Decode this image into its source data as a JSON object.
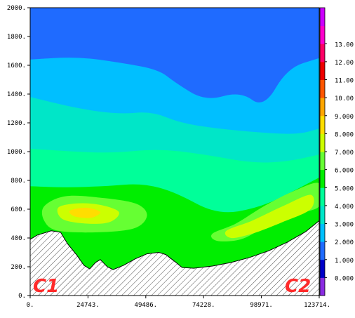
{
  "chart_data": {
    "type": "heatmap",
    "title": "",
    "xlabel": "",
    "ylabel": "",
    "x_ticks": [
      0,
      24743,
      49486,
      74228,
      98971,
      123714
    ],
    "x_tick_labels": [
      "0.",
      "24743.",
      "49486.",
      "74228.",
      "98971.",
      "123714."
    ],
    "xlim": [
      0,
      123714
    ],
    "y_ticks": [
      0,
      200,
      400,
      600,
      800,
      1000,
      1200,
      1400,
      1600,
      1800,
      2000
    ],
    "y_tick_labels": [
      "0.",
      "200.",
      "400.",
      "600.",
      "800.",
      "1000.",
      "1200.",
      "1400.",
      "1600.",
      "1800.",
      "2000."
    ],
    "ylim": [
      0,
      2000
    ],
    "colorbar": {
      "tick_labels": [
        "0.000",
        "1.000",
        "2.000",
        "3.000",
        "4.000",
        "5.000",
        "6.000",
        "7.000",
        "8.000",
        "9.000",
        "10.00",
        "11.00",
        "12.00",
        "13.00"
      ],
      "levels": [
        {
          "value": -1,
          "color": "#8a2be2"
        },
        {
          "value": 0,
          "color": "#0000c8"
        },
        {
          "value": 1,
          "color": "#1f6bff"
        },
        {
          "value": 2,
          "color": "#00bfff"
        },
        {
          "value": 3,
          "color": "#00e6c8"
        },
        {
          "value": 4,
          "color": "#00ff99"
        },
        {
          "value": 5,
          "color": "#00ee00"
        },
        {
          "value": 6,
          "color": "#66ff33"
        },
        {
          "value": 7,
          "color": "#ccff00"
        },
        {
          "value": 8,
          "color": "#ffdd00"
        },
        {
          "value": 9,
          "color": "#ffa500"
        },
        {
          "value": 10,
          "color": "#ff5500"
        },
        {
          "value": 11,
          "color": "#ee0000"
        },
        {
          "value": 12,
          "color": "#ff0066"
        },
        {
          "value": 13,
          "color": "#ff00cc"
        },
        {
          "value": 14,
          "color": "#cc00ff"
        }
      ]
    },
    "terrain_profile": [
      {
        "x": 0,
        "y": 390
      },
      {
        "x": 3000,
        "y": 420
      },
      {
        "x": 9000,
        "y": 450
      },
      {
        "x": 13000,
        "y": 440
      },
      {
        "x": 16000,
        "y": 360
      },
      {
        "x": 20000,
        "y": 280
      },
      {
        "x": 23000,
        "y": 210
      },
      {
        "x": 25500,
        "y": 185
      },
      {
        "x": 28000,
        "y": 230
      },
      {
        "x": 30000,
        "y": 250
      },
      {
        "x": 33000,
        "y": 200
      },
      {
        "x": 35500,
        "y": 180
      },
      {
        "x": 40000,
        "y": 210
      },
      {
        "x": 45000,
        "y": 255
      },
      {
        "x": 50000,
        "y": 290
      },
      {
        "x": 55000,
        "y": 300
      },
      {
        "x": 58000,
        "y": 285
      },
      {
        "x": 62000,
        "y": 235
      },
      {
        "x": 65000,
        "y": 195
      },
      {
        "x": 70000,
        "y": 190
      },
      {
        "x": 78000,
        "y": 205
      },
      {
        "x": 86000,
        "y": 230
      },
      {
        "x": 94000,
        "y": 265
      },
      {
        "x": 102000,
        "y": 310
      },
      {
        "x": 110000,
        "y": 370
      },
      {
        "x": 118000,
        "y": 445
      },
      {
        "x": 123714,
        "y": 520
      }
    ],
    "contours": [
      {
        "level": 1,
        "points": [
          [
            0,
            1640
          ],
          [
            20000,
            1660
          ],
          [
            38000,
            1620
          ],
          [
            55000,
            1570
          ],
          [
            62000,
            1480
          ],
          [
            75000,
            1350
          ],
          [
            90000,
            1420
          ],
          [
            100000,
            1300
          ],
          [
            110000,
            1580
          ],
          [
            123714,
            1650
          ]
        ]
      },
      {
        "level": 2,
        "points": [
          [
            0,
            1380
          ],
          [
            20000,
            1300
          ],
          [
            38000,
            1260
          ],
          [
            52000,
            1280
          ],
          [
            64000,
            1200
          ],
          [
            80000,
            1160
          ],
          [
            100000,
            1130
          ],
          [
            115000,
            1120
          ],
          [
            123714,
            1160
          ]
        ]
      },
      {
        "level": 3,
        "points": [
          [
            0,
            1020
          ],
          [
            18000,
            1000
          ],
          [
            35000,
            990
          ],
          [
            55000,
            1020
          ],
          [
            75000,
            980
          ],
          [
            95000,
            920
          ],
          [
            110000,
            930
          ],
          [
            123714,
            980
          ]
        ]
      },
      {
        "level": 4,
        "points": [
          [
            0,
            760
          ],
          [
            15000,
            750
          ],
          [
            33000,
            760
          ],
          [
            48000,
            780
          ],
          [
            62000,
            720
          ],
          [
            80000,
            560
          ],
          [
            98000,
            610
          ],
          [
            112000,
            720
          ],
          [
            123714,
            820
          ]
        ]
      },
      {
        "level": 5,
        "points": [
          [
            6000,
            620
          ],
          [
            15000,
            690
          ],
          [
            30000,
            680
          ],
          [
            45000,
            640
          ],
          [
            50000,
            560
          ],
          [
            45000,
            470
          ],
          [
            30000,
            440
          ],
          [
            12000,
            450
          ],
          [
            6000,
            520
          ]
        ]
      },
      {
        "level": 5,
        "points": [
          [
            78000,
            430
          ],
          [
            88000,
            500
          ],
          [
            100000,
            620
          ],
          [
            112000,
            720
          ],
          [
            123714,
            780
          ],
          [
            123714,
            620
          ],
          [
            112000,
            560
          ],
          [
            100000,
            470
          ],
          [
            90000,
            390
          ],
          [
            80000,
            380
          ]
        ]
      },
      {
        "level": 6,
        "points": [
          [
            12000,
            610
          ],
          [
            20000,
            640
          ],
          [
            30000,
            630
          ],
          [
            38000,
            580
          ],
          [
            34000,
            510
          ],
          [
            24000,
            500
          ],
          [
            14000,
            530
          ]
        ]
      },
      {
        "level": 6,
        "points": [
          [
            84000,
            450
          ],
          [
            95000,
            520
          ],
          [
            108000,
            620
          ],
          [
            120000,
            700
          ],
          [
            120000,
            600
          ],
          [
            108000,
            510
          ],
          [
            95000,
            430
          ],
          [
            86000,
            400
          ]
        ]
      },
      {
        "level": 7,
        "points": [
          [
            17000,
            590
          ],
          [
            24000,
            610
          ],
          [
            30000,
            580
          ],
          [
            26000,
            540
          ],
          [
            19000,
            550
          ]
        ]
      }
    ]
  },
  "corner_labels": {
    "left": "C1",
    "right": "C2"
  }
}
